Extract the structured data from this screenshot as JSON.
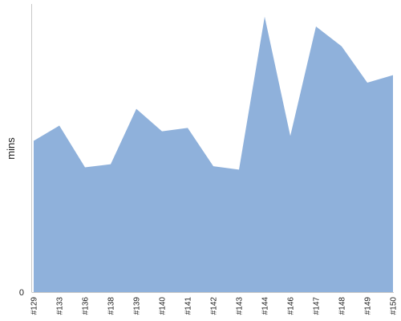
{
  "chart_data": {
    "type": "area",
    "title": "",
    "xlabel": "",
    "ylabel": "mins",
    "categories": [
      "#129",
      "#133",
      "#136",
      "#138",
      "#139",
      "#140",
      "#141",
      "#142",
      "#143",
      "#144",
      "#146",
      "#147",
      "#148",
      "#149",
      "#150"
    ],
    "values": [
      52.5,
      57.8,
      43.3,
      44.4,
      63.6,
      55.8,
      57.0,
      43.7,
      42.5,
      95.6,
      54.2,
      92.2,
      85.3,
      72.7,
      75.3
    ],
    "y_ticks": [
      "0"
    ],
    "ylim": [
      0,
      100
    ],
    "grid": false,
    "series_color": "#8fb1db"
  }
}
